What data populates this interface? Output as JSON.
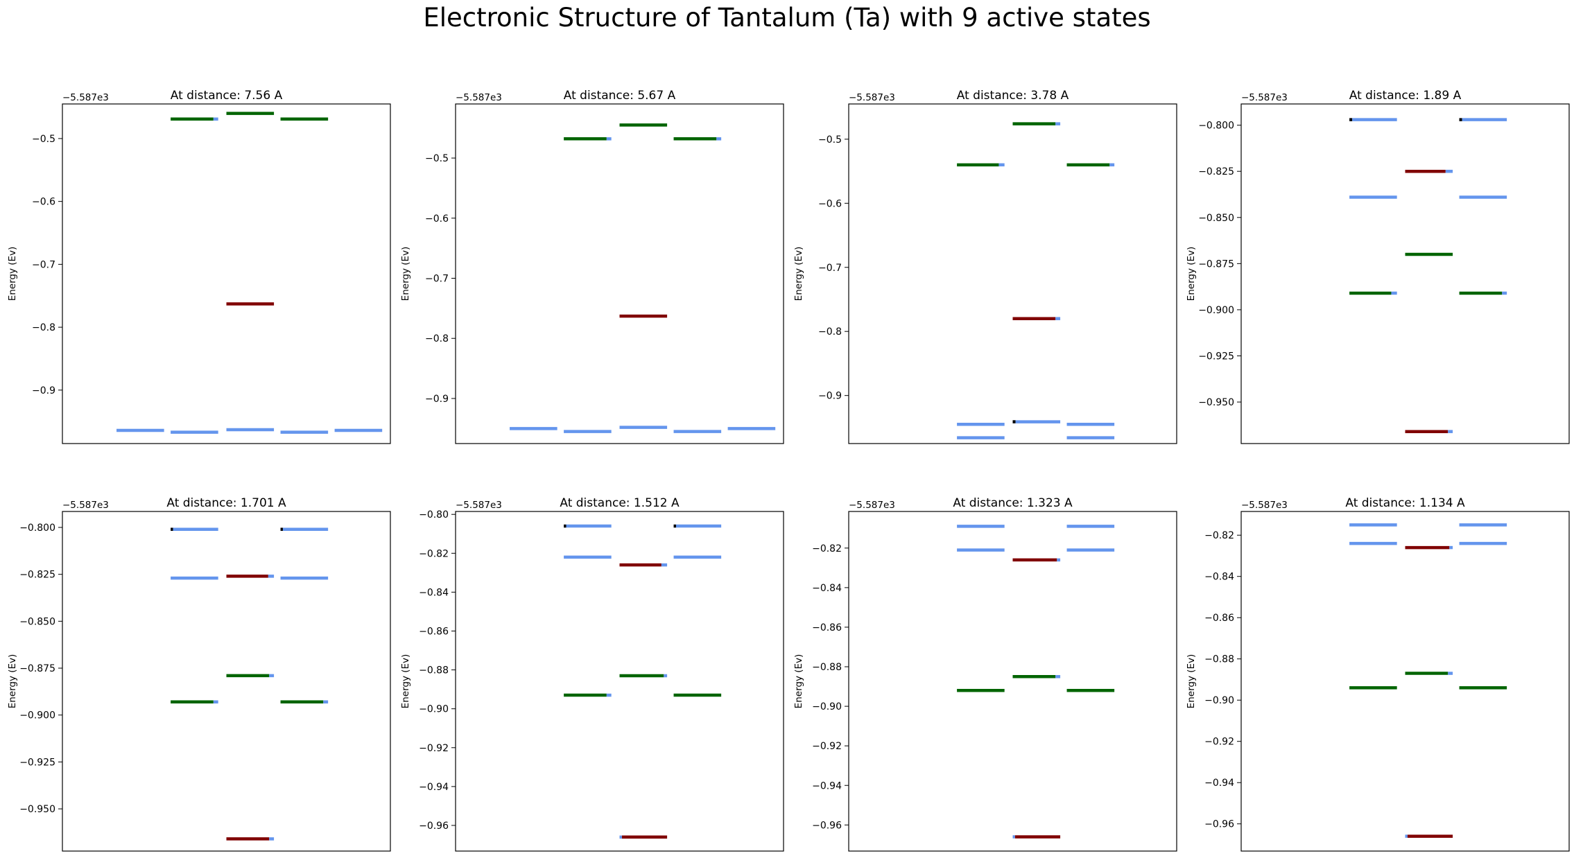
{
  "figure": {
    "title": "Electronic Structure of Tantalum (Ta) with 9 active states",
    "offset_label": "−5.587e3",
    "ylabel": "Energy (Ev)"
  },
  "legend_colors": {
    "blue": "#6495ed",
    "green": "#006400",
    "red": "#800000",
    "axis": "#000000"
  },
  "chart_data": [
    {
      "type": "energy-level",
      "title": "At distance: 7.56 A",
      "ylabel": "Energy (Ev)",
      "offset": -5587,
      "ylim": [
        -0.985,
        -0.445
      ],
      "yticks": [
        -0.5,
        -0.6,
        -0.7,
        -0.8,
        -0.9
      ],
      "ytick_labels": [
        "−0.5",
        "−0.6",
        "−0.7",
        "−0.8",
        "−0.9"
      ],
      "levels": [
        {
          "col": 0,
          "y": -0.964,
          "color": "blue"
        },
        {
          "col": 1,
          "y": -0.967,
          "color": "blue"
        },
        {
          "col": 2,
          "y": -0.963,
          "color": "blue"
        },
        {
          "col": 3,
          "y": -0.967,
          "color": "blue"
        },
        {
          "col": 4,
          "y": -0.964,
          "color": "blue"
        },
        {
          "col": 1,
          "y": -0.469,
          "color": "green",
          "tip": 0.1
        },
        {
          "col": 2,
          "y": -0.46,
          "color": "green"
        },
        {
          "col": 3,
          "y": -0.469,
          "color": "green"
        },
        {
          "col": 2,
          "y": -0.763,
          "color": "red"
        }
      ]
    },
    {
      "type": "energy-level",
      "title": "At distance: 5.67 A",
      "ylabel": "Energy (Ev)",
      "offset": -5587,
      "ylim": [
        -0.975,
        -0.41
      ],
      "yticks": [
        -0.5,
        -0.6,
        -0.7,
        -0.8,
        -0.9
      ],
      "ytick_labels": [
        "−0.5",
        "−0.6",
        "−0.7",
        "−0.8",
        "−0.9"
      ],
      "levels": [
        {
          "col": 0,
          "y": -0.95,
          "color": "blue"
        },
        {
          "col": 1,
          "y": -0.955,
          "color": "blue"
        },
        {
          "col": 2,
          "y": -0.948,
          "color": "blue"
        },
        {
          "col": 3,
          "y": -0.955,
          "color": "blue"
        },
        {
          "col": 4,
          "y": -0.95,
          "color": "blue"
        },
        {
          "col": 1,
          "y": -0.468,
          "color": "green",
          "tip": 0.1
        },
        {
          "col": 2,
          "y": -0.445,
          "color": "green"
        },
        {
          "col": 3,
          "y": -0.468,
          "color": "green",
          "tip": 0.1
        },
        {
          "col": 2,
          "y": -0.763,
          "color": "red"
        }
      ]
    },
    {
      "type": "energy-level",
      "title": "At distance: 3.78 A",
      "ylabel": "Energy (Ev)",
      "offset": -5587,
      "ylim": [
        -0.975,
        -0.445
      ],
      "yticks": [
        -0.5,
        -0.6,
        -0.7,
        -0.8,
        -0.9
      ],
      "ytick_labels": [
        "−0.5",
        "−0.6",
        "−0.7",
        "−0.8",
        "−0.9"
      ],
      "levels": [
        {
          "col": 1,
          "y": -0.945,
          "color": "blue"
        },
        {
          "col": 1,
          "y": -0.966,
          "color": "blue"
        },
        {
          "col": 2,
          "y": -0.941,
          "color": "blue",
          "lead": 0.06
        },
        {
          "col": 3,
          "y": -0.945,
          "color": "blue"
        },
        {
          "col": 3,
          "y": -0.966,
          "color": "blue"
        },
        {
          "col": 1,
          "y": -0.54,
          "color": "green",
          "tip": 0.12
        },
        {
          "col": 2,
          "y": -0.476,
          "color": "green",
          "tip": 0.1
        },
        {
          "col": 3,
          "y": -0.54,
          "color": "green",
          "tip": 0.1
        },
        {
          "col": 2,
          "y": -0.78,
          "color": "red",
          "tip": 0.1
        }
      ]
    },
    {
      "type": "energy-level",
      "title": "At distance: 1.89 A",
      "ylabel": "Energy (Ev)",
      "offset": -5587,
      "ylim": [
        -0.9725,
        -0.7885
      ],
      "yticks": [
        -0.8,
        -0.825,
        -0.85,
        -0.875,
        -0.9,
        -0.925,
        -0.95
      ],
      "ytick_labels": [
        "−0.800",
        "−0.825",
        "−0.850",
        "−0.875",
        "−0.900",
        "−0.925",
        "−0.950"
      ],
      "levels": [
        {
          "col": 1,
          "y": -0.797,
          "color": "blue",
          "lead": 0.06
        },
        {
          "col": 3,
          "y": -0.797,
          "color": "blue",
          "lead": 0.06
        },
        {
          "col": 1,
          "y": -0.839,
          "color": "blue"
        },
        {
          "col": 3,
          "y": -0.839,
          "color": "blue"
        },
        {
          "col": 2,
          "y": -0.825,
          "color": "red",
          "tip": 0.15
        },
        {
          "col": 2,
          "y": -0.87,
          "color": "green"
        },
        {
          "col": 1,
          "y": -0.891,
          "color": "green",
          "tip": 0.12
        },
        {
          "col": 3,
          "y": -0.891,
          "color": "green",
          "tip": 0.1
        },
        {
          "col": 2,
          "y": -0.966,
          "color": "red",
          "tip": 0.1
        }
      ]
    },
    {
      "type": "energy-level",
      "title": "At distance: 1.701 A",
      "ylabel": "Energy (Ev)",
      "offset": -5587,
      "ylim": [
        -0.9725,
        -0.7915
      ],
      "yticks": [
        -0.8,
        -0.825,
        -0.85,
        -0.875,
        -0.9,
        -0.925,
        -0.95
      ],
      "ytick_labels": [
        "−0.800",
        "−0.825",
        "−0.850",
        "−0.875",
        "−0.900",
        "−0.925",
        "−0.950"
      ],
      "levels": [
        {
          "col": 1,
          "y": -0.801,
          "color": "blue",
          "lead": 0.05
        },
        {
          "col": 3,
          "y": -0.801,
          "color": "blue",
          "lead": 0.05
        },
        {
          "col": 1,
          "y": -0.827,
          "color": "blue"
        },
        {
          "col": 3,
          "y": -0.827,
          "color": "blue"
        },
        {
          "col": 2,
          "y": -0.826,
          "color": "red",
          "tip": 0.12
        },
        {
          "col": 2,
          "y": -0.879,
          "color": "green",
          "tip": 0.1
        },
        {
          "col": 1,
          "y": -0.893,
          "color": "green",
          "tip": 0.1
        },
        {
          "col": 3,
          "y": -0.893,
          "color": "green",
          "tip": 0.1
        },
        {
          "col": 2,
          "y": -0.966,
          "color": "red",
          "tip": 0.1
        }
      ]
    },
    {
      "type": "energy-level",
      "title": "At distance: 1.512 A",
      "ylabel": "Energy (Ev)",
      "offset": -5587,
      "ylim": [
        -0.9732,
        -0.7985
      ],
      "yticks": [
        -0.8,
        -0.82,
        -0.84,
        -0.86,
        -0.88,
        -0.9,
        -0.92,
        -0.94,
        -0.96
      ],
      "ytick_labels": [
        "−0.80",
        "−0.82",
        "−0.84",
        "−0.86",
        "−0.88",
        "−0.90",
        "−0.92",
        "−0.94",
        "−0.96"
      ],
      "levels": [
        {
          "col": 1,
          "y": -0.806,
          "color": "blue",
          "lead": 0.05
        },
        {
          "col": 3,
          "y": -0.806,
          "color": "blue",
          "lead": 0.05
        },
        {
          "col": 1,
          "y": -0.822,
          "color": "blue"
        },
        {
          "col": 3,
          "y": -0.822,
          "color": "blue"
        },
        {
          "col": 2,
          "y": -0.826,
          "color": "red",
          "tip": 0.12
        },
        {
          "col": 2,
          "y": -0.883,
          "color": "green",
          "tip": 0.07
        },
        {
          "col": 1,
          "y": -0.893,
          "color": "green",
          "tip": 0.1
        },
        {
          "col": 3,
          "y": -0.893,
          "color": "green"
        },
        {
          "col": 2,
          "y": -0.966,
          "color": "red",
          "lead": 0.05
        }
      ]
    },
    {
      "type": "energy-level",
      "title": "At distance: 1.323 A",
      "ylabel": "Energy (Ev)",
      "offset": -5587,
      "ylim": [
        -0.9732,
        -0.8015
      ],
      "yticks": [
        -0.82,
        -0.84,
        -0.86,
        -0.88,
        -0.9,
        -0.92,
        -0.94,
        -0.96
      ],
      "ytick_labels": [
        "−0.82",
        "−0.84",
        "−0.86",
        "−0.88",
        "−0.90",
        "−0.92",
        "−0.94",
        "−0.96"
      ],
      "levels": [
        {
          "col": 1,
          "y": -0.809,
          "color": "blue"
        },
        {
          "col": 3,
          "y": -0.809,
          "color": "blue"
        },
        {
          "col": 1,
          "y": -0.821,
          "color": "blue"
        },
        {
          "col": 3,
          "y": -0.821,
          "color": "blue"
        },
        {
          "col": 2,
          "y": -0.826,
          "color": "red",
          "tip": 0.07
        },
        {
          "col": 2,
          "y": -0.885,
          "color": "green",
          "tip": 0.1
        },
        {
          "col": 1,
          "y": -0.892,
          "color": "green"
        },
        {
          "col": 3,
          "y": -0.892,
          "color": "green"
        },
        {
          "col": 2,
          "y": -0.966,
          "color": "red",
          "lead": 0.05
        }
      ]
    },
    {
      "type": "energy-level",
      "title": "At distance: 1.134 A",
      "ylabel": "Energy (Ev)",
      "offset": -5587,
      "ylim": [
        -0.9732,
        -0.8085
      ],
      "yticks": [
        -0.82,
        -0.84,
        -0.86,
        -0.88,
        -0.9,
        -0.92,
        -0.94,
        -0.96
      ],
      "ytick_labels": [
        "−0.82",
        "−0.84",
        "−0.86",
        "−0.88",
        "−0.90",
        "−0.92",
        "−0.94",
        "−0.96"
      ],
      "levels": [
        {
          "col": 1,
          "y": -0.815,
          "color": "blue"
        },
        {
          "col": 3,
          "y": -0.815,
          "color": "blue"
        },
        {
          "col": 1,
          "y": -0.824,
          "color": "blue"
        },
        {
          "col": 3,
          "y": -0.824,
          "color": "blue"
        },
        {
          "col": 2,
          "y": -0.826,
          "color": "red",
          "tip": 0.07
        },
        {
          "col": 2,
          "y": -0.887,
          "color": "green",
          "tip": 0.1
        },
        {
          "col": 1,
          "y": -0.894,
          "color": "green"
        },
        {
          "col": 3,
          "y": -0.894,
          "color": "green"
        },
        {
          "col": 2,
          "y": -0.966,
          "color": "red",
          "lead": 0.05
        }
      ]
    }
  ]
}
